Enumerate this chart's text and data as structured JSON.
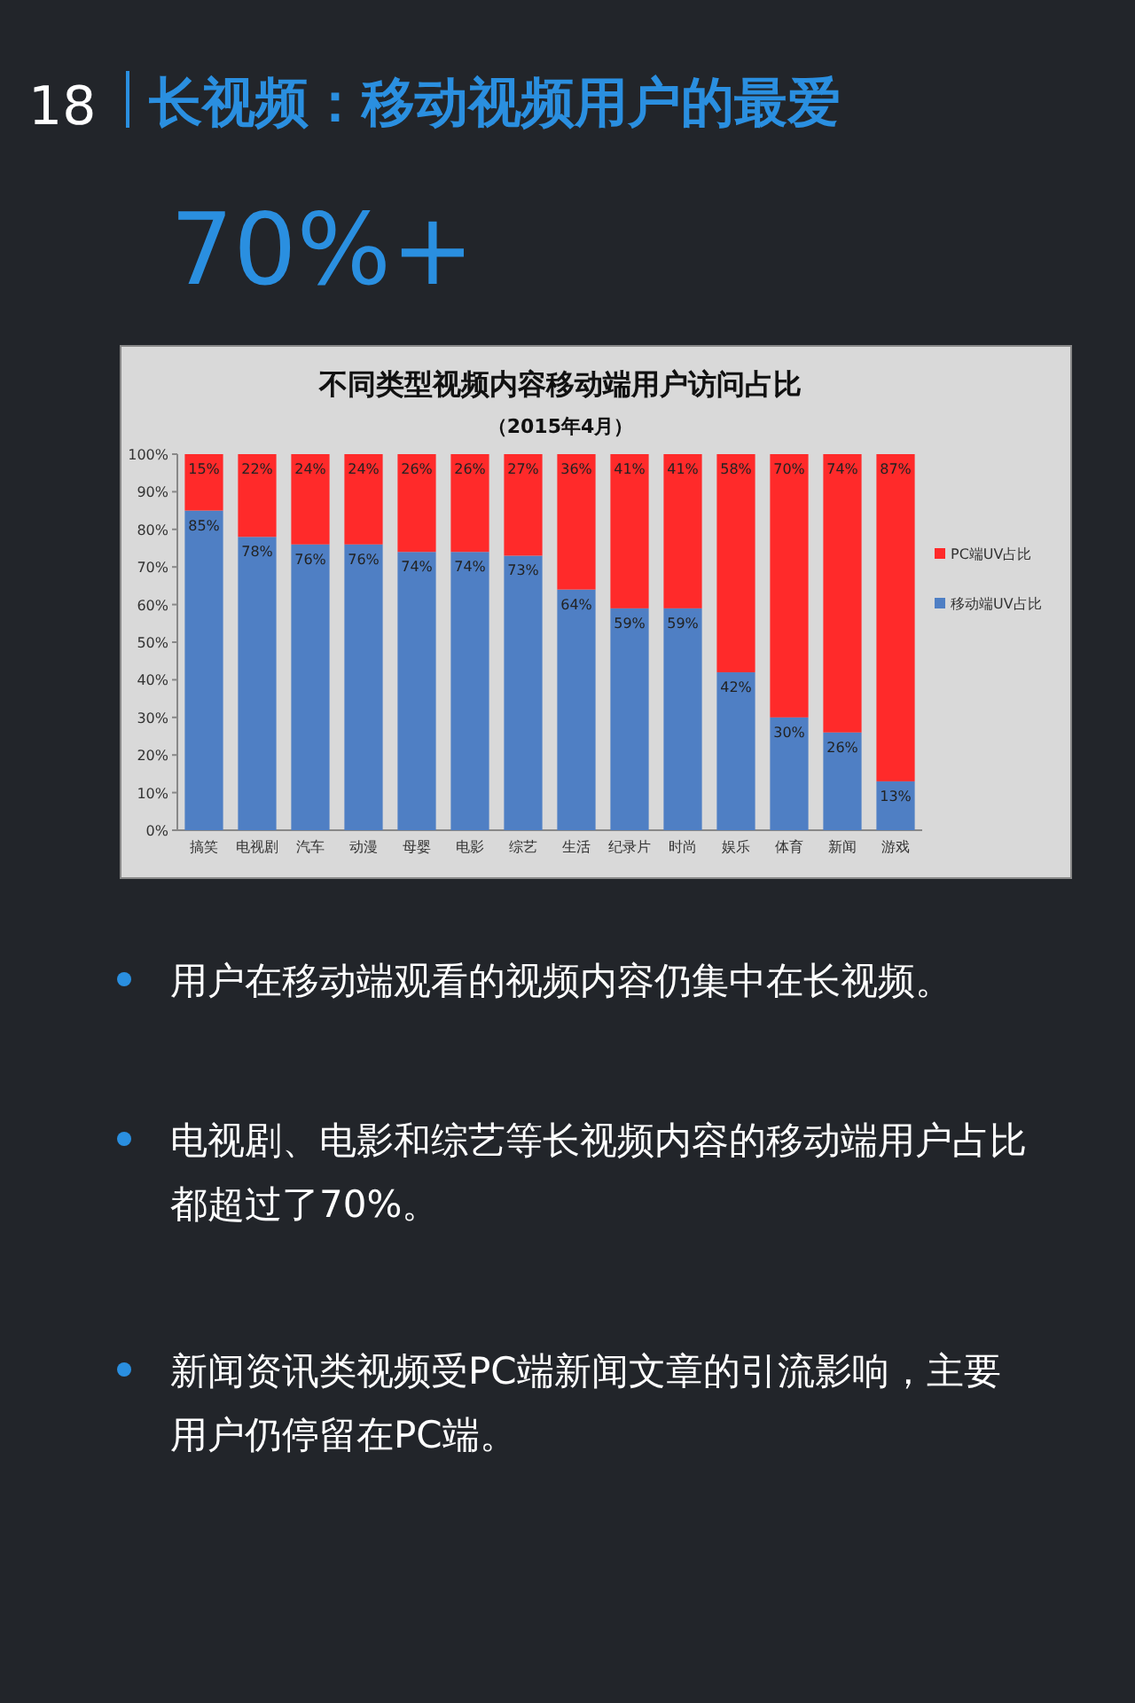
{
  "chart_data": {
    "type": "bar",
    "stacked": true,
    "title": "不同类型视频内容移动端用户访问占比",
    "subtitle": "（2015年4月）",
    "categories": [
      "搞笑",
      "电视剧",
      "汽车",
      "动漫",
      "母婴",
      "电影",
      "综艺",
      "生活",
      "纪录片",
      "时尚",
      "娱乐",
      "体育",
      "新闻",
      "游戏"
    ],
    "series": [
      {
        "name": "移动端UV占比",
        "color": "#4f7fc4",
        "values": [
          85,
          78,
          76,
          76,
          74,
          74,
          73,
          64,
          59,
          59,
          42,
          30,
          26,
          13
        ],
        "value_labels": [
          "85%",
          "78%",
          "76%",
          "76%",
          "74%",
          "74%",
          "73%",
          "64%",
          "59%",
          "59%",
          "42%",
          "30%",
          "26%",
          "13%"
        ]
      },
      {
        "name": "PC端UV占比",
        "color": "#ff2a2a",
        "values": [
          15,
          22,
          24,
          24,
          26,
          26,
          27,
          36,
          41,
          41,
          58,
          70,
          74,
          87
        ],
        "value_labels": [
          "15%",
          "22%",
          "24%",
          "24%",
          "26%",
          "26%",
          "27%",
          "36%",
          "41%",
          "41%",
          "58%",
          "70%",
          "74%",
          "87%"
        ]
      }
    ],
    "ylim": [
      0,
      100
    ],
    "yticks": [
      {
        "value": 0,
        "label": "0%"
      },
      {
        "value": 10,
        "label": "10%"
      },
      {
        "value": 20,
        "label": "20%"
      },
      {
        "value": 30,
        "label": "30%"
      },
      {
        "value": 40,
        "label": "40%"
      },
      {
        "value": 50,
        "label": "50%"
      },
      {
        "value": 60,
        "label": "60%"
      },
      {
        "value": 70,
        "label": "70%"
      },
      {
        "value": 80,
        "label": "80%"
      },
      {
        "value": 90,
        "label": "90%"
      },
      {
        "value": 100,
        "label": "100%"
      }
    ],
    "grid": false,
    "legend": "right",
    "annotations": [
      "18",
      "长视频：移动视频用户的最爱",
      "70%+",
      "用户在移动端观看的视频内容仍集中在长视频。",
      "电视剧、电影和综艺等长视频内容的移动端用户占比都超过了70%。",
      "新闻资讯类视频受PC端新闻文章的引流影响，主要用户仍停留在PC端。"
    ]
  }
}
